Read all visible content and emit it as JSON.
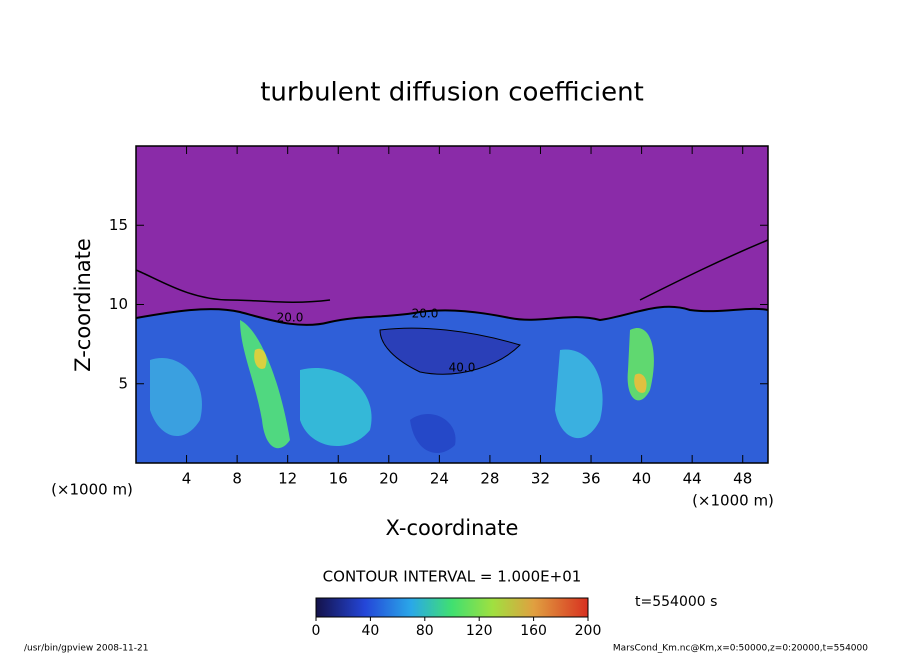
{
  "chart_data": {
    "type": "contour",
    "title": "turbulent diffusion coefficient",
    "xlabel": "X-coordinate",
    "ylabel": "Z-coordinate",
    "x_unit_label": "(×1000 m)",
    "y_unit_label": "(×1000 m)",
    "xlim": [
      0,
      50
    ],
    "xticks": [
      4,
      8,
      12,
      16,
      20,
      24,
      28,
      32,
      36,
      40,
      44,
      48
    ],
    "ylim": [
      0,
      20
    ],
    "yticks": [
      5,
      10,
      15
    ],
    "annotations": [
      "20.0",
      "20.0",
      "40.0"
    ],
    "contour_interval_label": "CONTOUR INTERVAL = 1.000E+01",
    "time_label": "t=554000 s",
    "colorbar": {
      "lim": [
        0,
        200
      ],
      "ticks": [
        0,
        40,
        80,
        120,
        160,
        200
      ]
    },
    "footer_left": "/usr/bin/gpview  2008-11-21",
    "footer_right": "MarsCond_Km.nc@Km,x=0:50000,z=0:20000,t=554000"
  }
}
